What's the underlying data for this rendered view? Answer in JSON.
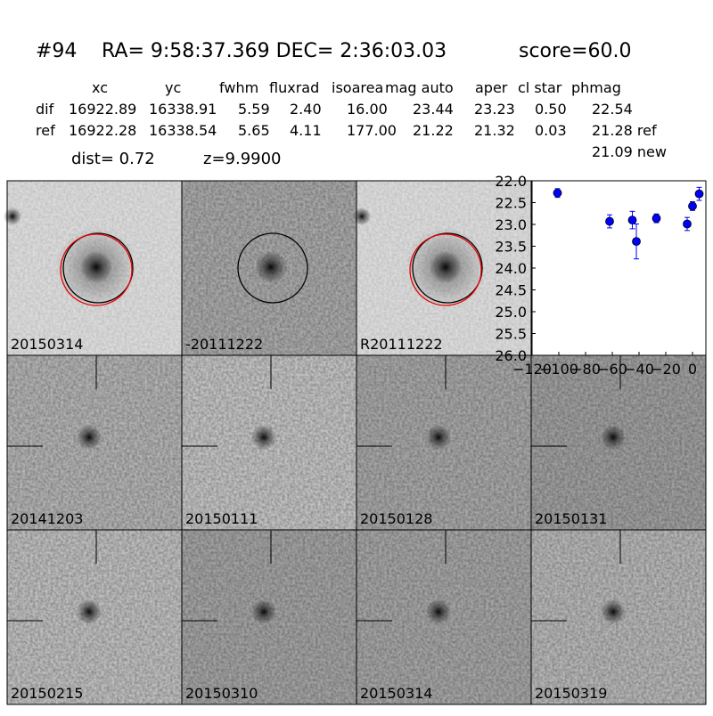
{
  "header": {
    "id": "#94",
    "coords": "RA= 9:58:37.369 DEC= 2:36:03.03",
    "score": "score=60.0"
  },
  "table": {
    "columns": [
      "xc",
      "yc",
      "fwhm",
      "fluxrad",
      "isoarea",
      "mag auto",
      "aper",
      "cl star",
      "phmag"
    ],
    "rows": [
      [
        "dif",
        "16922.89",
        "16338.91",
        "5.59",
        "2.40",
        "16.00",
        "23.44",
        "23.23",
        "0.50",
        "22.54"
      ],
      [
        "ref",
        "16922.28",
        "16338.54",
        "5.65",
        "4.11",
        "177.00",
        "21.22",
        "21.32",
        "0.03",
        "21.28 ref"
      ]
    ],
    "extra": "21.09 new"
  },
  "dist": "dist=  0.72",
  "z": "z=9.9900",
  "panels": [
    {
      "label": "20150314"
    },
    {
      "label": "-20111222"
    },
    {
      "label": "R20111222"
    },
    {
      "label": "20141203"
    },
    {
      "label": "20150111"
    },
    {
      "label": "20150128"
    },
    {
      "label": "20150131"
    },
    {
      "label": "20150215"
    },
    {
      "label": "20150310"
    },
    {
      "label": "20150314",
      "color": "#ff0000"
    },
    {
      "label": "20150319"
    }
  ],
  "chart_data": {
    "type": "errorbar",
    "color": "#0000ff",
    "x": [
      -101,
      -62,
      -45,
      -42,
      -27,
      -4,
      0,
      5
    ],
    "values": [
      22.28,
      22.93,
      22.9,
      23.39,
      22.86,
      22.99,
      22.58,
      22.3
    ],
    "errors": [
      0.1,
      0.15,
      0.2,
      0.4,
      0.1,
      0.15,
      0.1,
      0.15
    ],
    "xlim": [
      -120,
      10
    ],
    "ylim": [
      22,
      26
    ],
    "y_inverted": true,
    "xticks": [
      {
        "value": -120,
        "label": "−120"
      },
      {
        "value": -100,
        "label": "−100"
      },
      {
        "value": -80,
        "label": "−80"
      },
      {
        "value": -60,
        "label": "−60"
      },
      {
        "value": -40,
        "label": "−40"
      },
      {
        "value": -20,
        "label": "−20"
      },
      0
    ],
    "yticks": [
      {
        "value": 22,
        "label": "22.0"
      },
      22.5,
      {
        "value": 23,
        "label": "23.0"
      },
      23.5,
      {
        "value": 24,
        "label": "24.0"
      },
      24.5,
      {
        "value": 25,
        "label": "25.0"
      },
      25.5,
      {
        "value": 26,
        "label": "26.0"
      }
    ]
  }
}
